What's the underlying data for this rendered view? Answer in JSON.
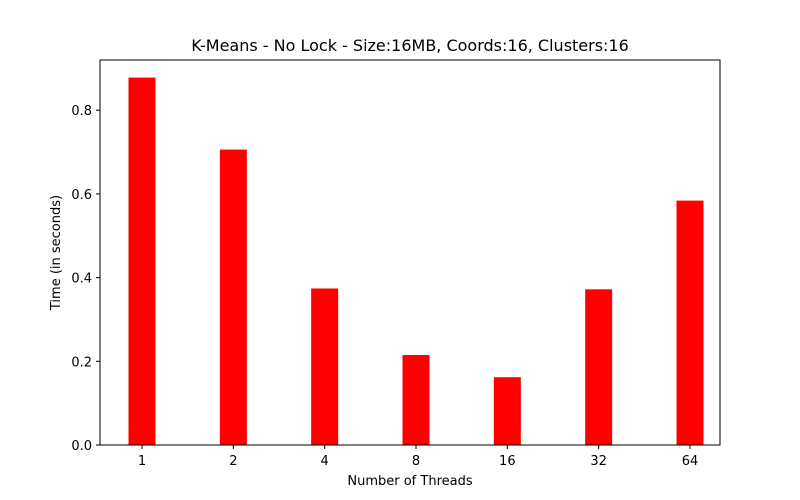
{
  "chart_data": {
    "type": "bar",
    "title": "K-Means - No Lock - Size:16MB, Coords:16, Clusters:16",
    "xlabel": "Number of Threads",
    "ylabel": "Time (in seconds)",
    "categories": [
      "1",
      "2",
      "4",
      "8",
      "16",
      "32",
      "64"
    ],
    "values": [
      0.878,
      0.706,
      0.374,
      0.215,
      0.162,
      0.372,
      0.584
    ],
    "ylim": [
      0,
      0.92
    ],
    "yticks": [
      0.0,
      0.2,
      0.4,
      0.6,
      0.8
    ],
    "ytick_labels": [
      "0.0",
      "0.2",
      "0.4",
      "0.6",
      "0.8"
    ],
    "bar_color": "#ff0000",
    "grid": false,
    "legend": "none"
  }
}
